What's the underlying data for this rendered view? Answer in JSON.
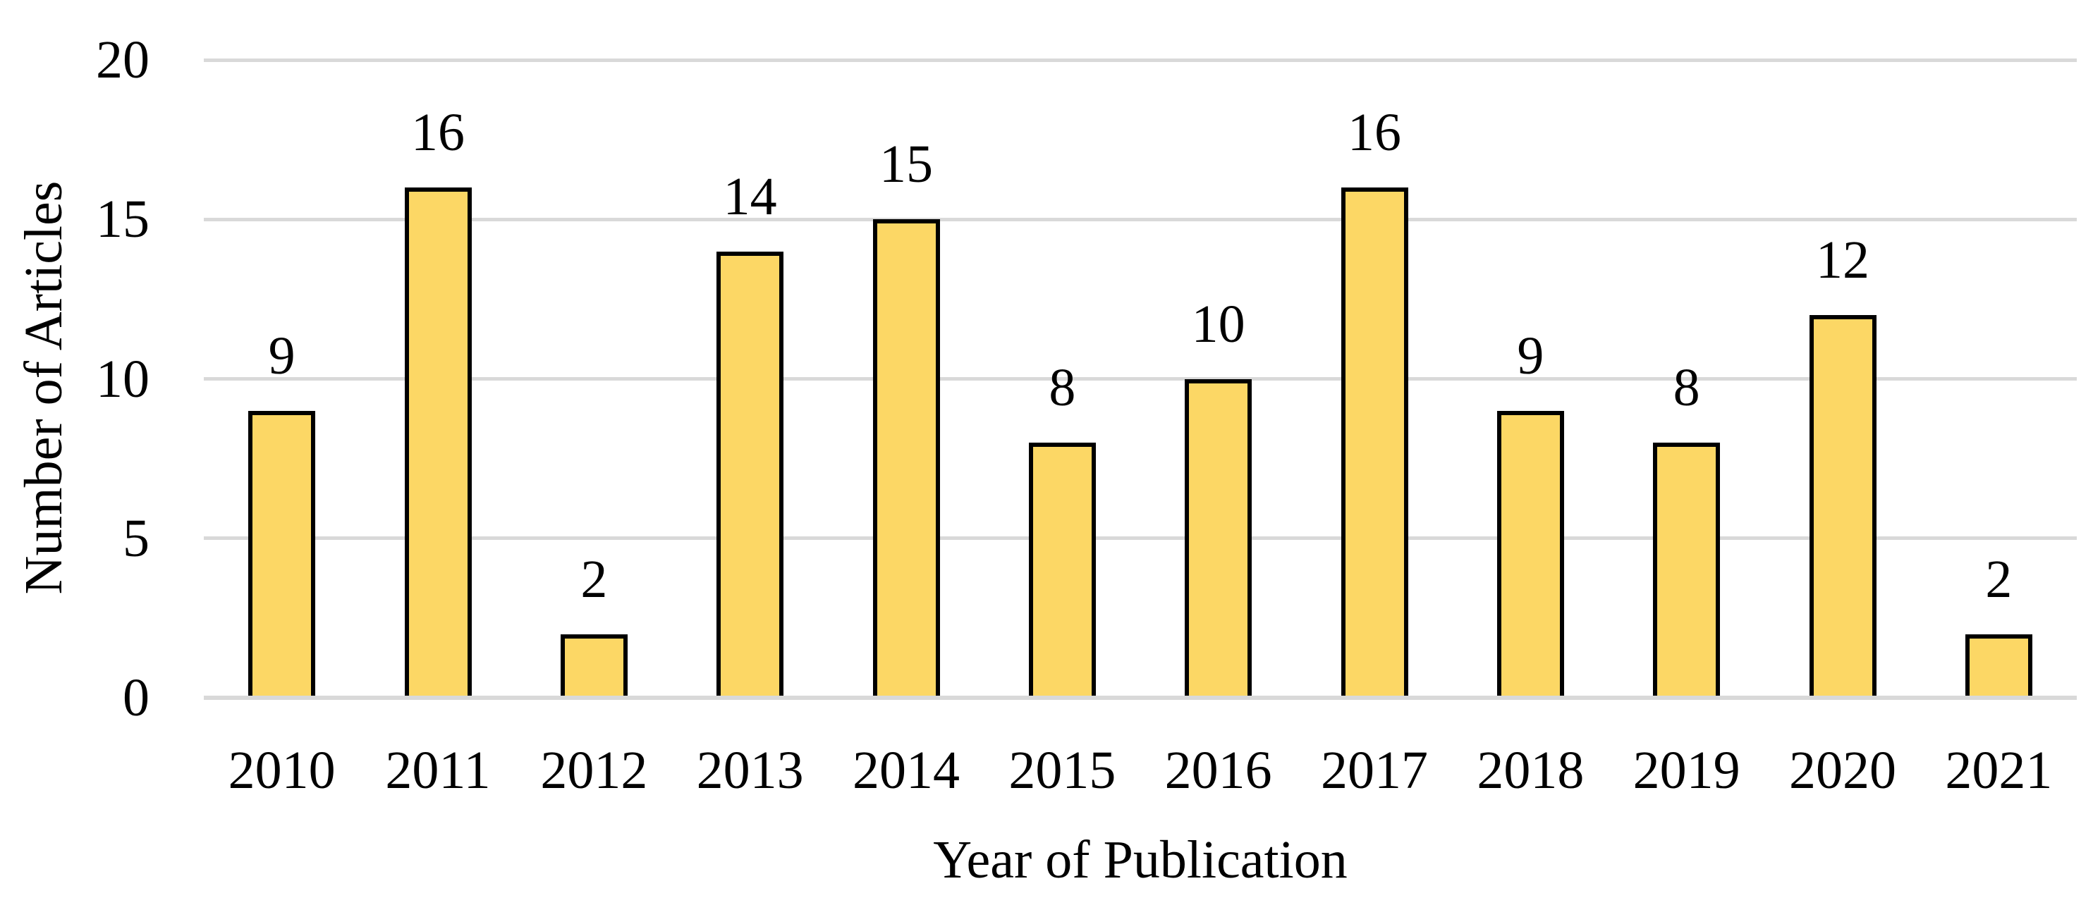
{
  "chart_data": {
    "type": "bar",
    "title": "",
    "categories": [
      "2010",
      "2011",
      "2012",
      "2013",
      "2014",
      "2015",
      "2016",
      "2017",
      "2018",
      "2019",
      "2020",
      "2021"
    ],
    "values": [
      9,
      16,
      2,
      14,
      15,
      8,
      10,
      16,
      9,
      8,
      12,
      2
    ],
    "xlabel": "Year of Publication",
    "ylabel": "Number of Articles",
    "ylim": [
      0,
      20
    ],
    "yticks": [
      0,
      5,
      10,
      15,
      20
    ],
    "grid": "horizontal",
    "legend": "none",
    "value_labels_shown": true,
    "colors": {
      "bar_fill": "#FCD765",
      "bar_border": "#000000",
      "gridline": "#D9D9D9",
      "text": "#000000",
      "background": "#FFFFFF"
    }
  }
}
